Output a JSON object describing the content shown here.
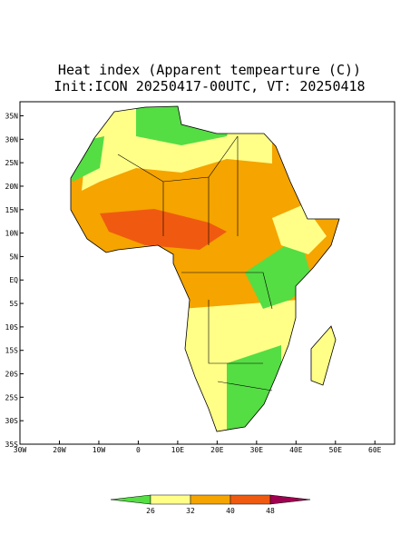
{
  "map": {
    "title": "Heat index (Apparent tempearture (C))",
    "subtitle": "Init:ICON 20250417-00UTC, VT: 20250418",
    "xlim": [
      -30,
      65
    ],
    "ylim": [
      -35,
      38
    ],
    "xticks": [
      {
        "value": -30,
        "label": "30W"
      },
      {
        "value": -20,
        "label": "20W"
      },
      {
        "value": -10,
        "label": "10W"
      },
      0,
      {
        "value": 10,
        "label": "10E"
      },
      {
        "value": 20,
        "label": "20E"
      },
      {
        "value": 30,
        "label": "30E"
      },
      {
        "value": 40,
        "label": "40E"
      },
      {
        "value": 50,
        "label": "50E"
      },
      {
        "value": 60,
        "label": "60E"
      }
    ],
    "yticks": [
      {
        "value": 35,
        "label": "35N"
      },
      {
        "value": 30,
        "label": "30N"
      },
      {
        "value": 25,
        "label": "25N"
      },
      {
        "value": 20,
        "label": "20N"
      },
      {
        "value": 15,
        "label": "15N"
      },
      {
        "value": 10,
        "label": "10N"
      },
      {
        "value": 5,
        "label": "5N"
      },
      {
        "value": 0,
        "label": "EQ"
      },
      {
        "value": -5,
        "label": "5S"
      },
      {
        "value": -10,
        "label": "10S"
      },
      {
        "value": -15,
        "label": "15S"
      },
      {
        "value": -20,
        "label": "20S"
      },
      {
        "value": -25,
        "label": "25S"
      },
      {
        "value": -30,
        "label": "30S"
      },
      {
        "value": -35,
        "label": "35S"
      }
    ],
    "colorbar": {
      "ticks": [
        26,
        32,
        40,
        48
      ],
      "colors": [
        "#55dd44",
        "#ffff88",
        "#f5a400",
        "#f05a10",
        "#a00050"
      ]
    }
  }
}
